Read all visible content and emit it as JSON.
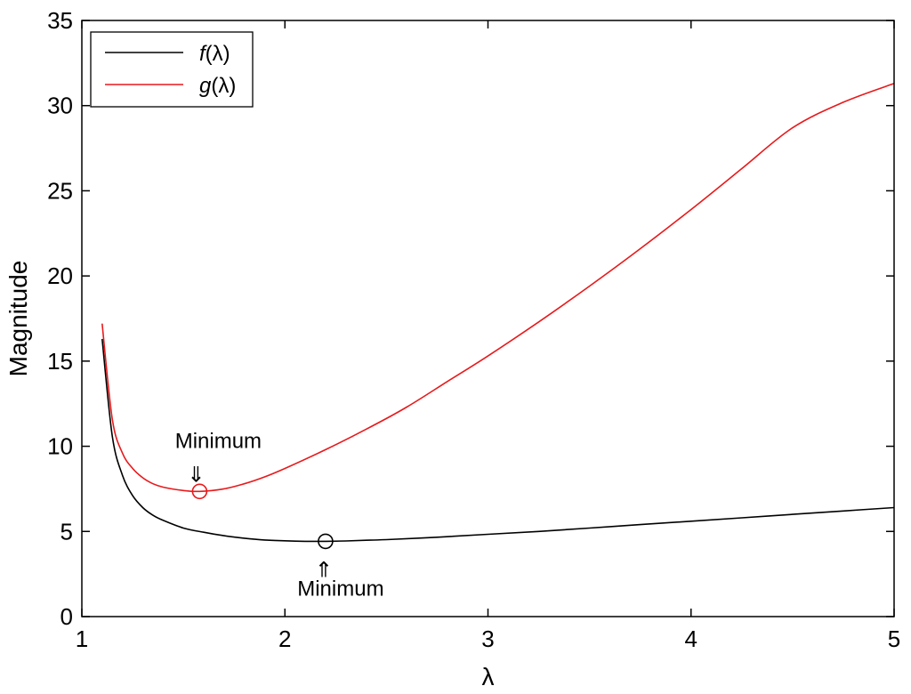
{
  "chart_data": {
    "type": "line",
    "xlabel": "λ",
    "ylabel": "Magnitude",
    "xlim": [
      1,
      5
    ],
    "ylim": [
      0,
      35
    ],
    "xticks": [
      1,
      2,
      3,
      4,
      5
    ],
    "yticks": [
      0,
      5,
      10,
      15,
      20,
      25,
      30,
      35
    ],
    "grid": false,
    "legend": {
      "placement": "top-left"
    },
    "series": [
      {
        "name": "f(λ)",
        "name_italic": "f",
        "name_rest": "(λ)",
        "color": "#000000",
        "x": [
          1.1,
          1.15,
          1.2,
          1.25,
          1.3,
          1.35,
          1.4,
          1.5,
          1.6,
          1.7,
          1.8,
          1.9,
          2.0,
          2.1,
          2.2,
          2.3,
          2.4,
          2.5,
          2.75,
          3.0,
          3.25,
          3.5,
          3.75,
          4.0,
          4.25,
          4.5,
          4.75,
          5.0
        ],
        "y": [
          16.3,
          10.6,
          8.3,
          7.1,
          6.4,
          5.95,
          5.65,
          5.2,
          4.95,
          4.75,
          4.6,
          4.5,
          4.45,
          4.42,
          4.42,
          4.44,
          4.48,
          4.52,
          4.66,
          4.83,
          5.0,
          5.2,
          5.4,
          5.6,
          5.8,
          6.0,
          6.2,
          6.4
        ],
        "minimum": {
          "x": 2.2,
          "y": 4.42
        }
      },
      {
        "name": "g(λ)",
        "name_italic": "g",
        "name_rest": "(λ)",
        "color": "#e8191b",
        "x": [
          1.1,
          1.15,
          1.2,
          1.25,
          1.3,
          1.35,
          1.4,
          1.5,
          1.58,
          1.7,
          1.8,
          1.9,
          2.0,
          2.2,
          2.4,
          2.6,
          2.8,
          3.0,
          3.25,
          3.5,
          3.75,
          4.0,
          4.25,
          4.5,
          4.75,
          5.0
        ],
        "y": [
          17.2,
          11.6,
          9.6,
          8.7,
          8.15,
          7.8,
          7.6,
          7.4,
          7.35,
          7.5,
          7.8,
          8.2,
          8.7,
          9.8,
          11.0,
          12.3,
          13.8,
          15.3,
          17.3,
          19.4,
          21.6,
          23.9,
          26.3,
          28.7,
          30.2,
          31.3
        ],
        "minimum": {
          "x": 1.58,
          "y": 7.35
        }
      }
    ],
    "annotations": [
      {
        "text": "Minimum",
        "arrow": "⇓",
        "target": "g"
      },
      {
        "text": "Minimum",
        "arrow": "⇑",
        "target": "f"
      }
    ]
  }
}
